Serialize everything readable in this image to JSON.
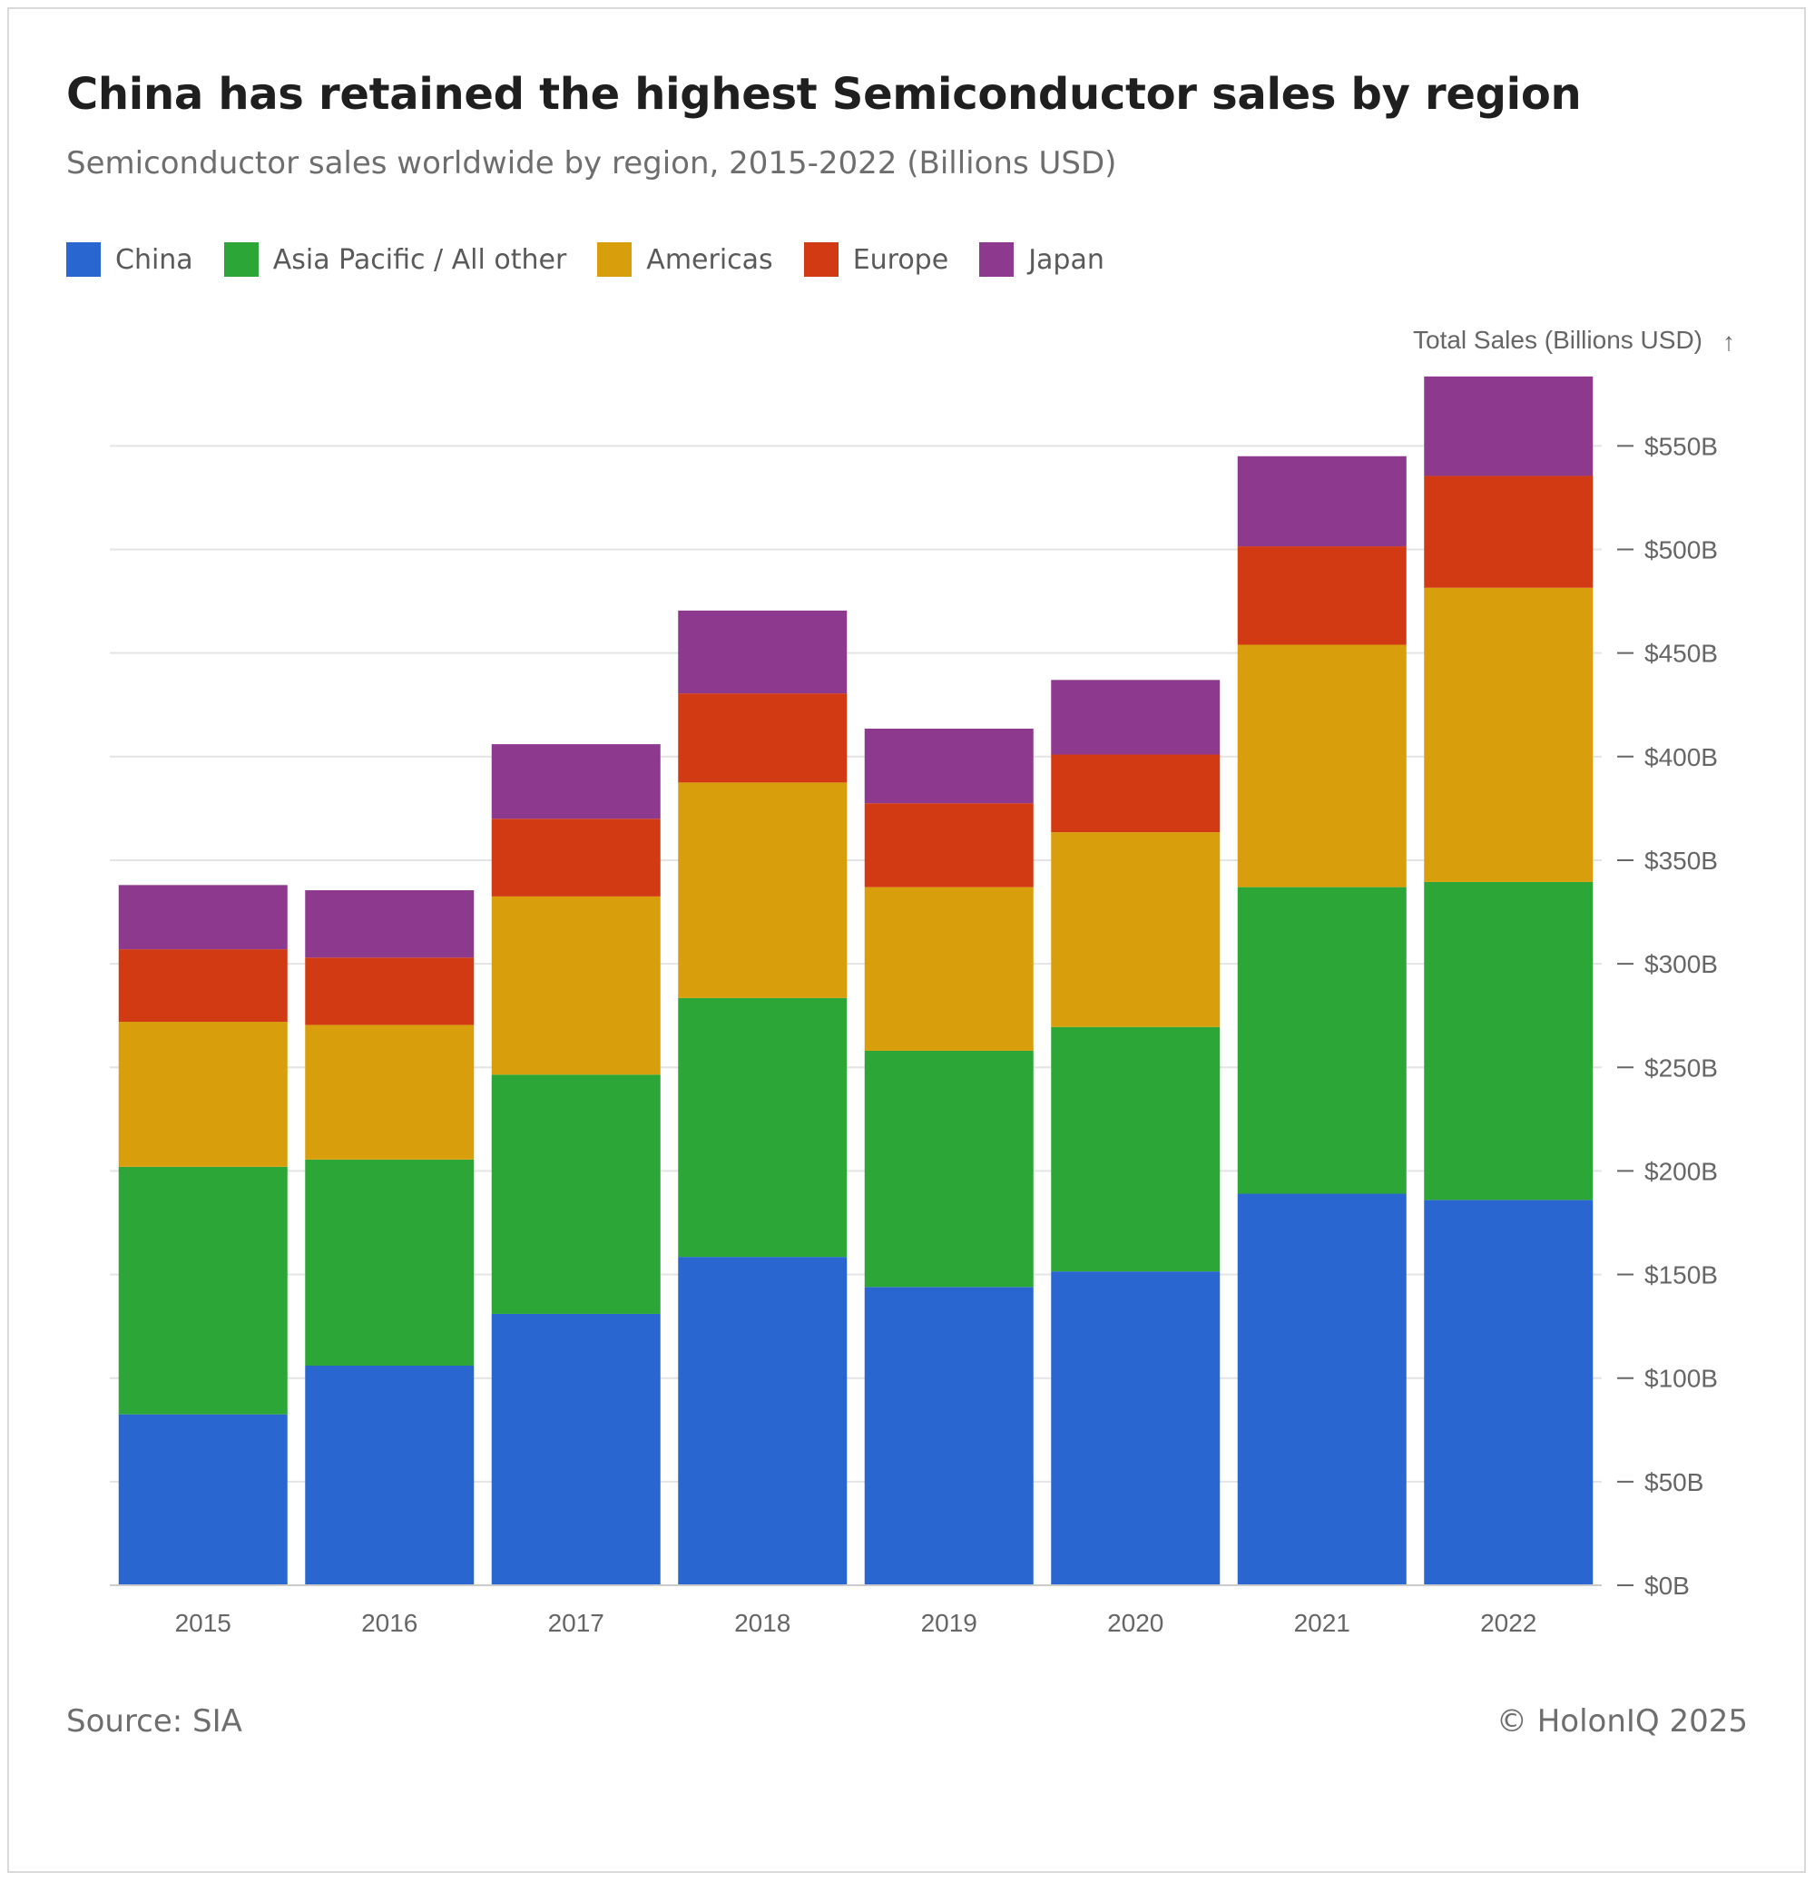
{
  "title": "China has retained the highest Semiconductor sales by region",
  "subtitle": "Semiconductor sales worldwide by region, 2015-2022 (Billions USD)",
  "source": "Source: SIA",
  "copyright": "© HolonIQ 2025",
  "chart_data": {
    "type": "bar",
    "stacked": true,
    "title": "China has retained the highest Semiconductor sales by region",
    "subtitle": "Semiconductor sales worldwide by region, 2015-2022 (Billions USD)",
    "xlabel": "",
    "ylabel": "Total Sales (Billions USD)",
    "ylabel_arrow": "↑",
    "ylim": [
      0,
      580
    ],
    "y_ticks": [
      0,
      50,
      100,
      150,
      200,
      250,
      300,
      350,
      400,
      450,
      500,
      550
    ],
    "y_tick_labels": [
      "$0B",
      "$50B",
      "$100B",
      "$150B",
      "$200B",
      "$250B",
      "$300B",
      "$350B",
      "$400B",
      "$450B",
      "$500B",
      "$550B"
    ],
    "y_axis_side": "right",
    "grid": true,
    "legend_position": "top-left",
    "categories": [
      "2015",
      "2016",
      "2017",
      "2018",
      "2019",
      "2020",
      "2021",
      "2022"
    ],
    "series": [
      {
        "name": "China",
        "color": "#2a66cf",
        "values": [
          82.5,
          106.0,
          131.0,
          158.5,
          144.0,
          151.5,
          189.0,
          186.0
        ]
      },
      {
        "name": "Asia Pacific / All other",
        "color": "#2ca637",
        "values": [
          119.5,
          99.5,
          115.5,
          125.0,
          114.0,
          118.0,
          148.0,
          153.5
        ]
      },
      {
        "name": "Americas",
        "color": "#d89e0c",
        "values": [
          70.0,
          65.0,
          86.0,
          104.0,
          79.0,
          94.0,
          117.0,
          142.0
        ]
      },
      {
        "name": "Europe",
        "color": "#d23a14",
        "values": [
          35.0,
          32.5,
          37.5,
          43.0,
          40.5,
          37.5,
          47.5,
          54.0
        ]
      },
      {
        "name": "Japan",
        "color": "#8d398e",
        "values": [
          31.0,
          32.5,
          36.0,
          40.0,
          36.0,
          36.0,
          43.5,
          48.0
        ]
      }
    ]
  }
}
